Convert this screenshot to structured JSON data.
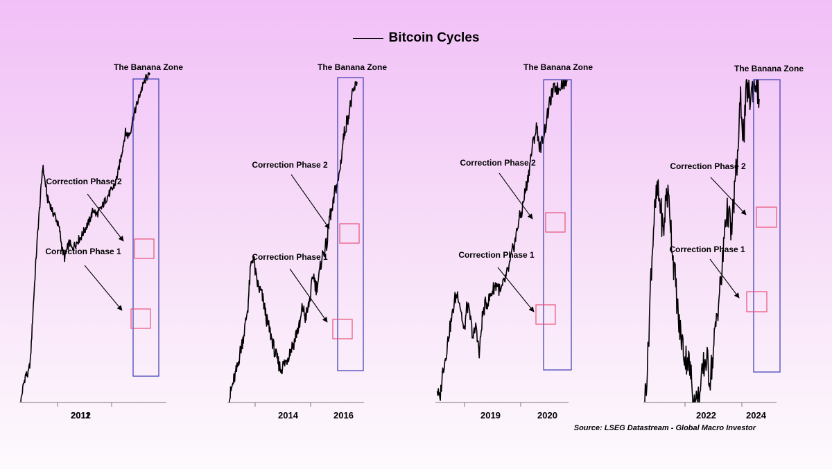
{
  "title": "Bitcoin Cycles",
  "source": "Source: LSEG Datastream - Global Macro Investor",
  "colors": {
    "price": "#000000",
    "zone_box": "#3838b0",
    "phase_box": "#e8527a",
    "axis": "#777777"
  },
  "chart_data": [
    {
      "type": "line",
      "series": [
        {
          "values": [
            0.1,
            0.15,
            0.2,
            0.2,
            0.3,
            1,
            3,
            8,
            18,
            42,
            28,
            18,
            16,
            13,
            12,
            10,
            8,
            5,
            4,
            5,
            6,
            5,
            5.5,
            6,
            6.5,
            7,
            8,
            9,
            10,
            12,
            14,
            12,
            13,
            14,
            16,
            18,
            20,
            22,
            24,
            28,
            36,
            50,
            70,
            100,
            92,
            100,
            140,
            175,
            215,
            270,
            320,
            380,
            420,
            460
          ]
        }
      ],
      "x_ticks": [
        "2011",
        "2012"
      ],
      "annotations": [
        {
          "label": "The Banana Zone",
          "type": "zone"
        },
        {
          "label": "Correction Phase 2",
          "type": "phase"
        },
        {
          "label": "Correction Phase 1",
          "type": "phase"
        }
      ]
    },
    {
      "type": "line",
      "series": [
        {
          "values": [
            5,
            6,
            7,
            8,
            10,
            12,
            15,
            20,
            35,
            42,
            30,
            26,
            24,
            20,
            16,
            14,
            12,
            10,
            9,
            8,
            8.5,
            9,
            10,
            11,
            12,
            14,
            15,
            20,
            17,
            19,
            24,
            32,
            26,
            30,
            40,
            45,
            50,
            75,
            80,
            110,
            120,
            160,
            230,
            280,
            330,
            400,
            470,
            520
          ]
        }
      ],
      "x_ticks": [
        "2014",
        "2016"
      ],
      "annotations": [
        {
          "label": "The Banana Zone",
          "type": "zone"
        },
        {
          "label": "Correction Phase 2",
          "type": "phase"
        },
        {
          "label": "Correction Phase 1",
          "type": "phase"
        }
      ]
    },
    {
      "type": "line",
      "series": [
        {
          "values": [
            3,
            2.5,
            4,
            5,
            7,
            9,
            12,
            13,
            10,
            7,
            11,
            9,
            6.5,
            8,
            5,
            9,
            11,
            11.5,
            13,
            14.5,
            15,
            13,
            15,
            17,
            20,
            25,
            30,
            40,
            45,
            60,
            75,
            105,
            140,
            170,
            120,
            140,
            175,
            230,
            280,
            310,
            300,
            330,
            335,
            345
          ]
        }
      ],
      "x_ticks": [
        "2019",
        "2020"
      ],
      "annotations": [
        {
          "label": "The Banana Zone",
          "type": "zone"
        },
        {
          "label": "Correction Phase 2",
          "type": "phase"
        },
        {
          "label": "Correction Phase 1",
          "type": "phase"
        }
      ]
    },
    {
      "type": "line",
      "series": [
        {
          "values": [
            3,
            4,
            7,
            10,
            12,
            11,
            9,
            12,
            11,
            8,
            6.5,
            5,
            4.5,
            4,
            4,
            3.5,
            3,
            3,
            3.2,
            3.8,
            4,
            3.5,
            4,
            5,
            6,
            7,
            10,
            10.5,
            9,
            12,
            15,
            22,
            17,
            24,
            22,
            24,
            25,
            22
          ]
        }
      ],
      "x_ticks": [
        "2022",
        "2024"
      ],
      "annotations": [
        {
          "label": "The Banana Zone",
          "type": "zone"
        },
        {
          "label": "Correction Phase 2",
          "type": "phase"
        },
        {
          "label": "Correction Phase 1",
          "type": "phase"
        }
      ]
    }
  ]
}
